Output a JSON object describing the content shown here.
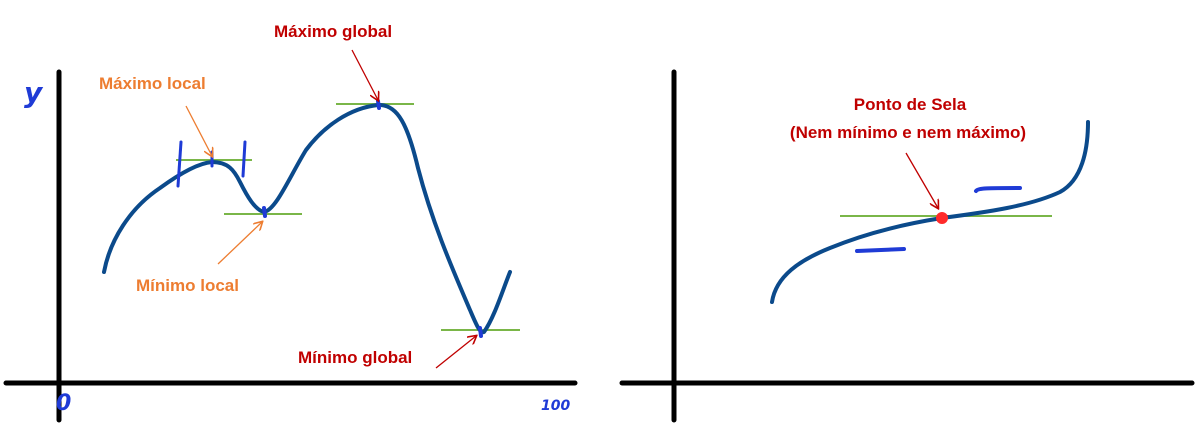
{
  "left_plot": {
    "y_axis_label": "y",
    "x_origin_label": "0",
    "x_end_label": "100",
    "labels": {
      "global_max": "Máximo global",
      "local_max": "Máximo local",
      "local_min": "Mínimo local",
      "global_min": "Mínimo global"
    }
  },
  "right_plot": {
    "title_line1": "Ponto de Sela",
    "title_line2": "(Nem mínimo e nem máximo)"
  },
  "colors": {
    "curve": "#0b4a8b",
    "axis": "#000000",
    "tangent": "#7ab648",
    "red_label": "#c00000",
    "orange_label": "#ed7d31",
    "marker_blue": "#1f3bd6",
    "saddle_point": "#ff2a2a"
  }
}
